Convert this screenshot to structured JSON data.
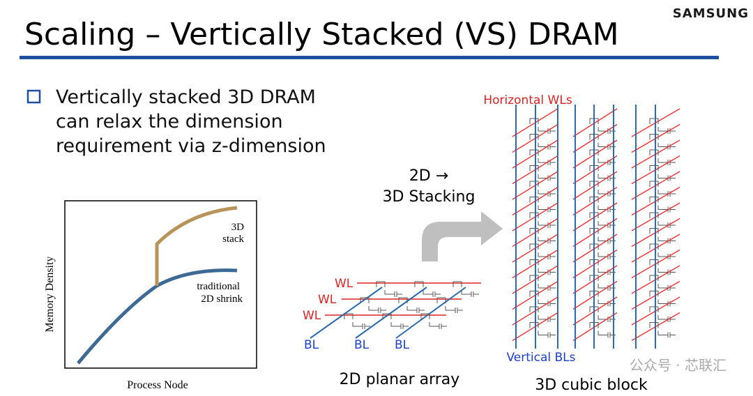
{
  "header": {
    "title": "Scaling – Vertically Stacked (VS) DRAM",
    "logo": "SAMSUNG"
  },
  "bullet": {
    "lines": [
      "Vertically stacked 3D DRAM",
      "can relax the dimension",
      "requirement via z-dimension"
    ]
  },
  "graph": {
    "y_axis_label": "Memory Density",
    "x_axis_label": "Process Node",
    "stack_label": [
      "3D",
      "stack"
    ],
    "shrink_label": [
      "traditional",
      "2D shrink"
    ]
  },
  "transition": {
    "lines": [
      "2D →",
      "3D Stacking"
    ]
  },
  "planar_array": {
    "word_lines": [
      "WL",
      "WL",
      "WL"
    ],
    "bit_lines": [
      "BL",
      "BL",
      "BL"
    ],
    "caption": "2D planar array"
  },
  "cubic_block": {
    "word_line_label": "Horizontal WLs",
    "bit_line_label": "Vertical BLs",
    "caption": "3D cubic block"
  },
  "watermark": "公众号 · 芯联汇"
}
